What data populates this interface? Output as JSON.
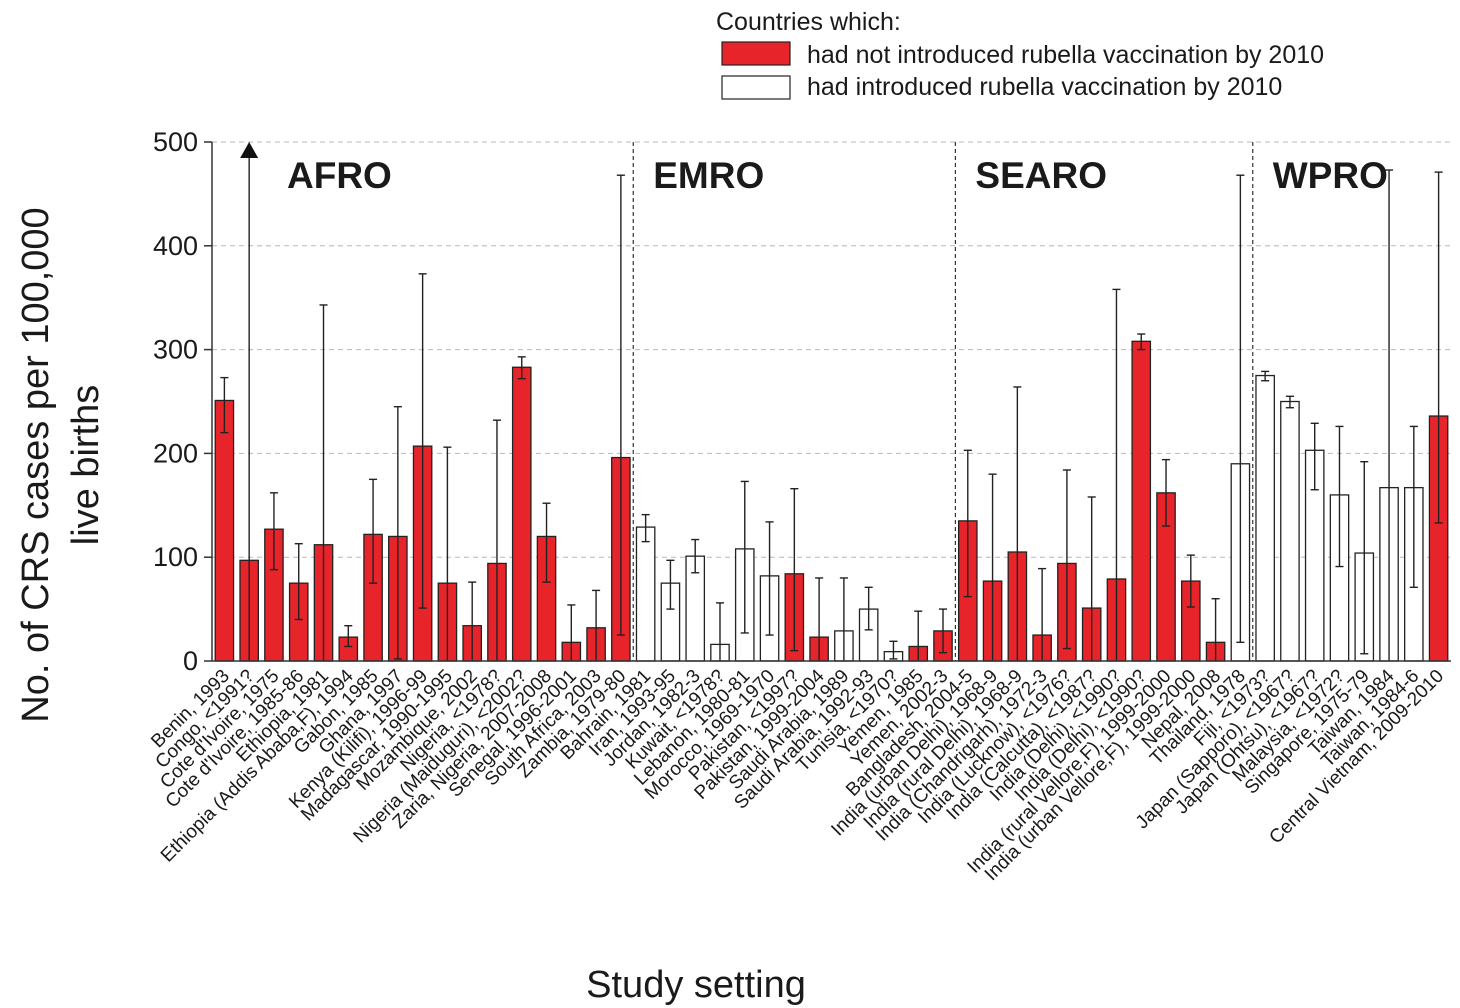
{
  "chart_data": {
    "type": "bar",
    "title": "",
    "xlabel": "Study setting",
    "ylabel": "No. of CRS cases per 100,000 live births",
    "ylabel_lines": [
      "No. of CRS cases per 100,000",
      "live births"
    ],
    "ylim": [
      0,
      500
    ],
    "yticks": [
      "0",
      "100",
      "200",
      "300",
      "400",
      "500"
    ],
    "grid": true,
    "legend": {
      "title": "Countries which:",
      "placement": "top-right",
      "entries": [
        {
          "label": "had not introduced rubella vaccination by 2010",
          "color": "#e8242b"
        },
        {
          "label": "had introduced rubella vaccination by 2010",
          "color": "#ffffff"
        }
      ]
    },
    "regions": [
      "AFRO",
      "EMRO",
      "SEARO",
      "WPRO"
    ],
    "series": [
      {
        "name": "had not introduced rubella vaccination by 2010",
        "color": "#e8242b"
      },
      {
        "name": "had introduced rubella vaccination by 2010",
        "color": "#ffffff"
      }
    ],
    "points": [
      {
        "label": "Benin, 1993",
        "value": 251,
        "lower": 220,
        "upper": 273,
        "introduced": false,
        "region": "AFRO"
      },
      {
        "label": "Congo, <1991?",
        "value": 97,
        "lower": 0,
        "upper": 500,
        "introduced": false,
        "region": "AFRO",
        "arrow": true
      },
      {
        "label": "Cote d'Ivoire, 1975",
        "value": 127,
        "lower": 88,
        "upper": 162,
        "introduced": false,
        "region": "AFRO"
      },
      {
        "label": "Cote d'Ivoire, 1985-86",
        "value": 75,
        "lower": 40,
        "upper": 113,
        "introduced": false,
        "region": "AFRO"
      },
      {
        "label": "Ethiopia, 1981",
        "value": 112,
        "lower": 0,
        "upper": 343,
        "introduced": false,
        "region": "AFRO"
      },
      {
        "label": "Ethiopia (Addis Ababa,F), 1994",
        "value": 23,
        "lower": 14,
        "upper": 34,
        "introduced": false,
        "region": "AFRO"
      },
      {
        "label": "Gabon, 1985",
        "value": 122,
        "lower": 75,
        "upper": 175,
        "introduced": false,
        "region": "AFRO"
      },
      {
        "label": "Ghana, 1997",
        "value": 120,
        "lower": 2,
        "upper": 245,
        "introduced": false,
        "region": "AFRO"
      },
      {
        "label": "Kenya (Kilifi), 1996-99",
        "value": 207,
        "lower": 51,
        "upper": 373,
        "introduced": false,
        "region": "AFRO"
      },
      {
        "label": "Madagascar, 1990-1995",
        "value": 75,
        "lower": 0,
        "upper": 206,
        "introduced": false,
        "region": "AFRO"
      },
      {
        "label": "Mozambique, 2002",
        "value": 34,
        "lower": 0,
        "upper": 76,
        "introduced": false,
        "region": "AFRO"
      },
      {
        "label": "Nigeria, <1978?",
        "value": 94,
        "lower": 0,
        "upper": 232,
        "introduced": false,
        "region": "AFRO"
      },
      {
        "label": "Nigeria (Maiduguri), <2002?",
        "value": 283,
        "lower": 272,
        "upper": 293,
        "introduced": false,
        "region": "AFRO"
      },
      {
        "label": "Zaria, Nigeria, 2007-2008",
        "value": 120,
        "lower": 76,
        "upper": 152,
        "introduced": false,
        "region": "AFRO"
      },
      {
        "label": "Senegal, 1996-2001",
        "value": 18,
        "lower": 0,
        "upper": 54,
        "introduced": false,
        "region": "AFRO"
      },
      {
        "label": "South Africa, 2003",
        "value": 32,
        "lower": 0,
        "upper": 68,
        "introduced": false,
        "region": "AFRO"
      },
      {
        "label": "Zambia, 1979-80",
        "value": 196,
        "lower": 25,
        "upper": 468,
        "introduced": false,
        "region": "AFRO"
      },
      {
        "label": "Bahrain, 1981",
        "value": 129,
        "lower": 115,
        "upper": 141,
        "introduced": true,
        "region": "EMRO"
      },
      {
        "label": "Iran, 1993-95",
        "value": 75,
        "lower": 50,
        "upper": 97,
        "introduced": true,
        "region": "EMRO"
      },
      {
        "label": "Jordan, 1982-3",
        "value": 101,
        "lower": 85,
        "upper": 117,
        "introduced": true,
        "region": "EMRO"
      },
      {
        "label": "Kuwait, <1978?",
        "value": 16,
        "lower": 0,
        "upper": 56,
        "introduced": true,
        "region": "EMRO"
      },
      {
        "label": "Lebanon, 1980-81",
        "value": 108,
        "lower": 27,
        "upper": 173,
        "introduced": true,
        "region": "EMRO"
      },
      {
        "label": "Morocco, 1969-1970",
        "value": 82,
        "lower": 25,
        "upper": 134,
        "introduced": true,
        "region": "EMRO"
      },
      {
        "label": "Pakistan, <1997?",
        "value": 84,
        "lower": 10,
        "upper": 166,
        "introduced": false,
        "region": "EMRO"
      },
      {
        "label": "Pakistan, 1999-2004",
        "value": 23,
        "lower": 0,
        "upper": 80,
        "introduced": false,
        "region": "EMRO"
      },
      {
        "label": "Saudi Arabia, 1989",
        "value": 29,
        "lower": 0,
        "upper": 80,
        "introduced": true,
        "region": "EMRO"
      },
      {
        "label": "Saudi Arabia, 1992-93",
        "value": 50,
        "lower": 30,
        "upper": 71,
        "introduced": true,
        "region": "EMRO"
      },
      {
        "label": "Tunisia, <1970?",
        "value": 9,
        "lower": 2,
        "upper": 19,
        "introduced": true,
        "region": "EMRO"
      },
      {
        "label": "Yemen, 1985",
        "value": 14,
        "lower": 0,
        "upper": 48,
        "introduced": false,
        "region": "EMRO"
      },
      {
        "label": "Yemen, 2002-3",
        "value": 29,
        "lower": 8,
        "upper": 50,
        "introduced": false,
        "region": "EMRO"
      },
      {
        "label": "Bangladesh, 2004-5",
        "value": 135,
        "lower": 62,
        "upper": 203,
        "introduced": false,
        "region": "SEARO"
      },
      {
        "label": "India (urban Delhi), 1968-9",
        "value": 77,
        "lower": 0,
        "upper": 180,
        "introduced": false,
        "region": "SEARO"
      },
      {
        "label": "India (rural Delhi), 1968-9",
        "value": 105,
        "lower": 0,
        "upper": 264,
        "introduced": false,
        "region": "SEARO"
      },
      {
        "label": "India (Chandrigarh), 1972-3",
        "value": 25,
        "lower": 0,
        "upper": 89,
        "introduced": false,
        "region": "SEARO"
      },
      {
        "label": "India (Lucknow), <1976?",
        "value": 94,
        "lower": 12,
        "upper": 184,
        "introduced": false,
        "region": "SEARO"
      },
      {
        "label": "India (Calcutta), <1987?",
        "value": 51,
        "lower": 0,
        "upper": 158,
        "introduced": false,
        "region": "SEARO"
      },
      {
        "label": "India (Delhi), <1990?",
        "value": 79,
        "lower": 0,
        "upper": 358,
        "introduced": false,
        "region": "SEARO"
      },
      {
        "label": "India (Delhi), <1990?",
        "value": 308,
        "lower": 300,
        "upper": 315,
        "introduced": false,
        "region": "SEARO"
      },
      {
        "label": "India (rural Vellore,F), 1999-2000",
        "value": 162,
        "lower": 130,
        "upper": 194,
        "introduced": false,
        "region": "SEARO"
      },
      {
        "label": "India (urban Vellore,F), 1999-2000",
        "value": 77,
        "lower": 52,
        "upper": 102,
        "introduced": false,
        "region": "SEARO"
      },
      {
        "label": "Nepal, 2008",
        "value": 18,
        "lower": 0,
        "upper": 60,
        "introduced": false,
        "region": "SEARO"
      },
      {
        "label": "Thailand, 1978",
        "value": 190,
        "lower": 18,
        "upper": 468,
        "introduced": true,
        "region": "SEARO"
      },
      {
        "label": "Fiji, <1973?",
        "value": 275,
        "lower": 270,
        "upper": 279,
        "introduced": true,
        "region": "WPRO"
      },
      {
        "label": "Japan (Sapporo), <1967?",
        "value": 250,
        "lower": 244,
        "upper": 255,
        "introduced": true,
        "region": "WPRO"
      },
      {
        "label": "Japan (Ohtsu), <1967?",
        "value": 203,
        "lower": 165,
        "upper": 229,
        "introduced": true,
        "region": "WPRO"
      },
      {
        "label": "Malaysia, <1972?",
        "value": 160,
        "lower": 91,
        "upper": 226,
        "introduced": true,
        "region": "WPRO"
      },
      {
        "label": "Singapore, 1975-79",
        "value": 104,
        "lower": 7,
        "upper": 192,
        "introduced": true,
        "region": "WPRO"
      },
      {
        "label": "Taiwan, 1984",
        "value": 167,
        "lower": 0,
        "upper": 473,
        "introduced": true,
        "region": "WPRO"
      },
      {
        "label": "Taiwan, 1984-6",
        "value": 167,
        "lower": 71,
        "upper": 226,
        "introduced": true,
        "region": "WPRO"
      },
      {
        "label": "Central Vietnam, 2009-2010",
        "value": 236,
        "lower": 133,
        "upper": 471,
        "introduced": false,
        "region": "WPRO"
      }
    ]
  }
}
